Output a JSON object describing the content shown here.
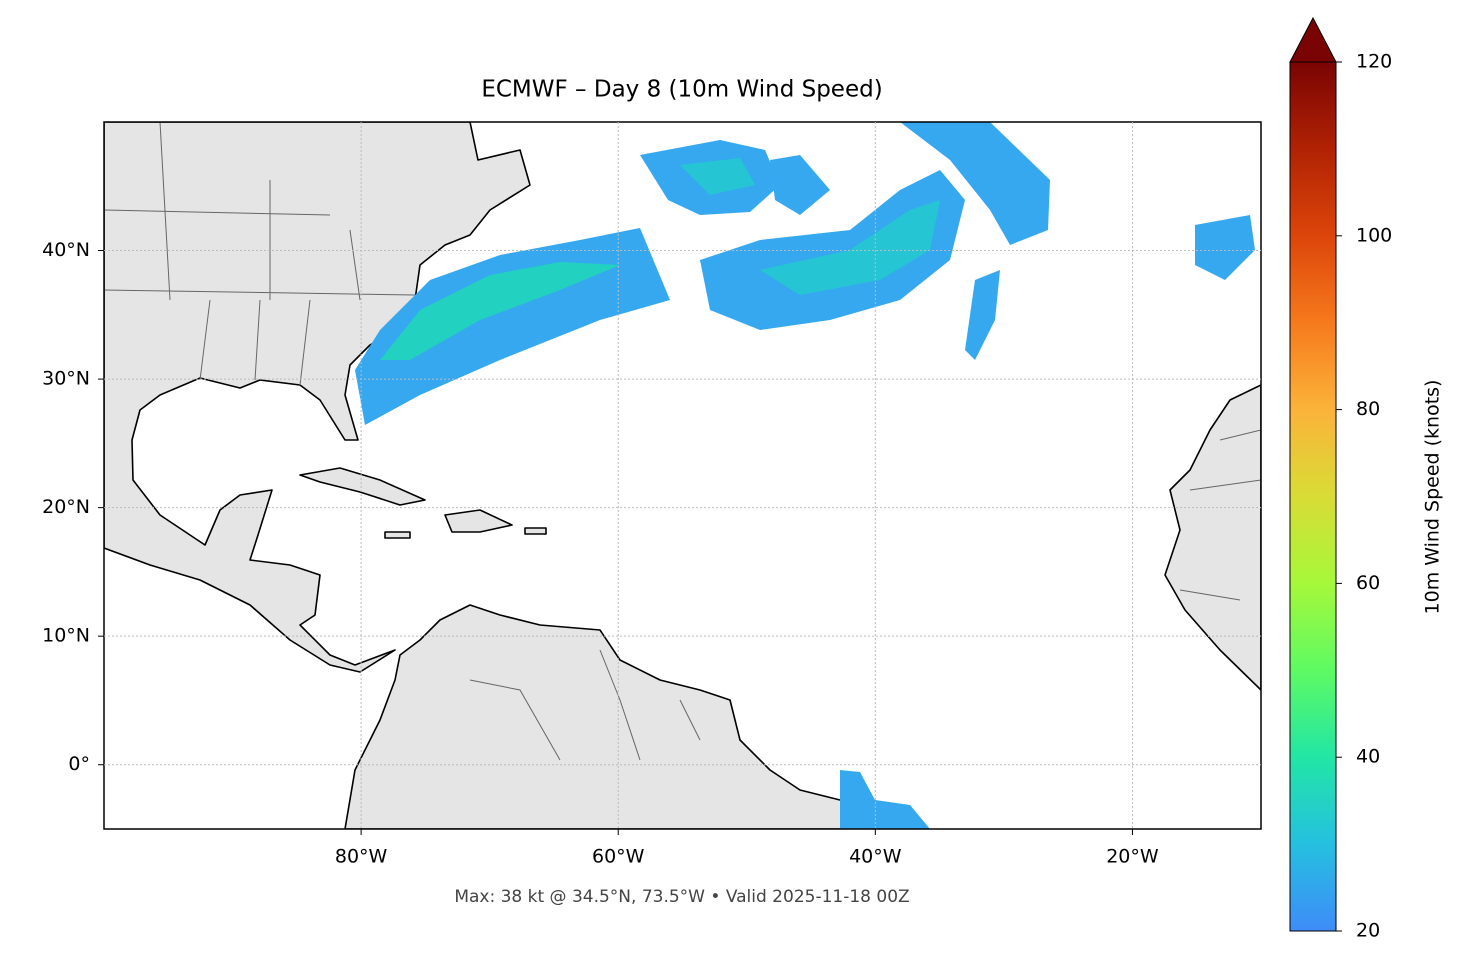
{
  "chart_data": {
    "type": "map",
    "title": "ECMWF – Day 8 (10m Wind Speed)",
    "footnote": "Max: 38 kt @ 34.5°N, 73.5°W • Valid 2025-11-18 00Z",
    "xlim": [
      -100,
      -10
    ],
    "ylim": [
      -5,
      50
    ],
    "xticks": [
      {
        "value": -80,
        "label": "80°W"
      },
      {
        "value": -60,
        "label": "60°W"
      },
      {
        "value": -40,
        "label": "40°W"
      },
      {
        "value": -20,
        "label": "20°W"
      }
    ],
    "yticks": [
      {
        "value": 0,
        "label": "0°"
      },
      {
        "value": 10,
        "label": "10°N"
      },
      {
        "value": 20,
        "label": "20°N"
      },
      {
        "value": 30,
        "label": "30°N"
      },
      {
        "value": 40,
        "label": "40°N"
      }
    ],
    "grid": true,
    "colorbar": {
      "label": "10m Wind Speed (knots)",
      "lim": [
        20,
        120
      ],
      "ticks": [
        20,
        40,
        60,
        80,
        100,
        120
      ],
      "extend": "max"
    }
  }
}
